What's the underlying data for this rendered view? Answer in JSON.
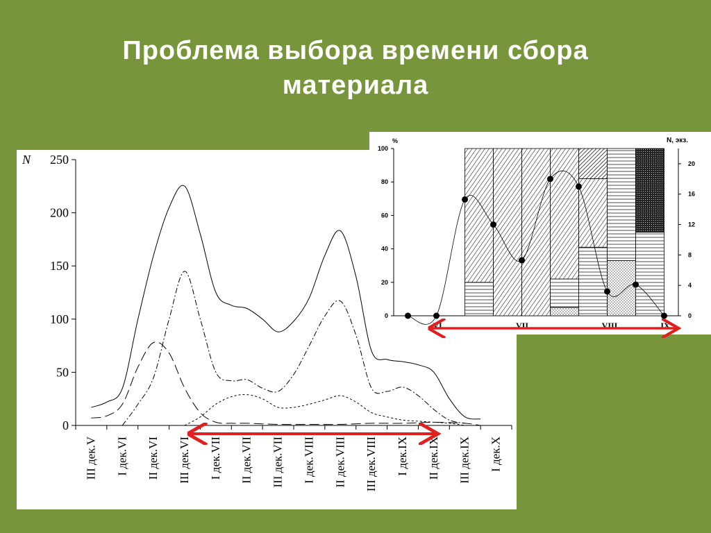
{
  "slide": {
    "title_line1": "Проблема выбора времени сбора",
    "title_line2": "материала"
  },
  "colors": {
    "background": "#77963b",
    "arrow": "#e0201e",
    "ink": "#000000"
  },
  "chart_data": [
    {
      "type": "line",
      "title": "",
      "ylabel": "N",
      "ylim": [
        0,
        250
      ],
      "yticks": [
        0,
        50,
        100,
        150,
        200,
        250
      ],
      "categories": [
        "III дек.V",
        "I дек.VI",
        "II дек.VI",
        "III дек.VI",
        "I дек.VII",
        "II дек.VII",
        "III дек.VII",
        "I дек.VIII",
        "II дек.VIII",
        "III дек.VIII",
        "I дек.IX",
        "II дек.IX",
        "III дек.IX",
        "I дек.X"
      ],
      "series": [
        {
          "style": "solid",
          "x": [
            0,
            0.5,
            1,
            1.5,
            2,
            2.5,
            3,
            3.5,
            4,
            4.5,
            5,
            5.5,
            6,
            6.5,
            7,
            7.5,
            8,
            8.5,
            9,
            9.5,
            10,
            10.5,
            11,
            11.5,
            12,
            12.5
          ],
          "values": [
            17,
            22,
            35,
            100,
            160,
            205,
            225,
            180,
            125,
            113,
            110,
            100,
            88,
            98,
            120,
            160,
            183,
            140,
            70,
            62,
            60,
            57,
            50,
            25,
            8,
            6
          ]
        },
        {
          "style": "dash-dot",
          "x": [
            1,
            1.5,
            2,
            2.5,
            3,
            3.5,
            4,
            4.5,
            5,
            5.5,
            6,
            6.5,
            7,
            7.5,
            8,
            8.5,
            9,
            9.5,
            10,
            10.5,
            11,
            11.5,
            12
          ],
          "values": [
            0,
            20,
            45,
            100,
            145,
            100,
            50,
            42,
            43,
            35,
            32,
            48,
            75,
            103,
            117,
            85,
            35,
            32,
            36,
            28,
            15,
            5,
            2
          ]
        },
        {
          "style": "long-dash",
          "x": [
            0,
            0.5,
            1,
            1.5,
            2,
            2.5,
            3,
            3.5,
            4,
            4.5,
            5,
            6,
            7,
            8,
            9,
            10,
            11,
            12,
            12.5
          ],
          "values": [
            7,
            9,
            20,
            55,
            78,
            68,
            35,
            12,
            3,
            2,
            2,
            1,
            1,
            1,
            2,
            2,
            3,
            2,
            0
          ]
        },
        {
          "style": "short-dash",
          "x": [
            3,
            3.5,
            4,
            4.5,
            5,
            5.5,
            6,
            6.5,
            7,
            7.5,
            8,
            8.5,
            9,
            9.5,
            10,
            10.5,
            11,
            11.5,
            12
          ],
          "values": [
            0,
            8,
            20,
            27,
            29,
            25,
            17,
            17,
            20,
            24,
            28,
            22,
            12,
            8,
            5,
            4,
            3,
            2,
            0
          ]
        }
      ],
      "highlight_range": [
        "III дек.VI",
        "II дек.IX"
      ]
    },
    {
      "type": "bar",
      "ylabel_left": "%",
      "ylabel_right": "N, экз.",
      "ylim_left": [
        0,
        100
      ],
      "ylim_right": [
        0,
        22
      ],
      "yticks_left": [
        0,
        20,
        40,
        60,
        80,
        100
      ],
      "yticks_right": [
        0,
        4,
        8,
        12,
        16,
        20
      ],
      "month_labels": [
        "VI",
        "VII",
        "VIII",
        "IX"
      ],
      "stacked_bars": [
        {
          "segments": [
            {
              "pattern": "hlines",
              "value": 20
            },
            {
              "pattern": "diag",
              "value": 80
            }
          ]
        },
        {
          "segments": [
            {
              "pattern": "diag",
              "value": 100
            }
          ]
        },
        {
          "segments": [
            {
              "pattern": "diag",
              "value": 100
            }
          ]
        },
        {
          "segments": [
            {
              "pattern": "dots",
              "value": 5
            },
            {
              "pattern": "hlines",
              "value": 17
            },
            {
              "pattern": "diag",
              "value": 78
            }
          ]
        },
        {
          "segments": [
            {
              "pattern": "hlines",
              "value": 41
            },
            {
              "pattern": "diag",
              "value": 41
            },
            {
              "pattern": "crosshatch",
              "value": 18
            }
          ]
        },
        {
          "segments": [
            {
              "pattern": "dots",
              "value": 33
            },
            {
              "pattern": "hlines",
              "value": 67
            }
          ]
        },
        {
          "segments": [
            {
              "pattern": "hlines",
              "value": 50
            },
            {
              "pattern": "dense",
              "value": 50
            }
          ]
        }
      ],
      "points": [
        0,
        0,
        15.3,
        12,
        7.3,
        18,
        17,
        3.2,
        4.1,
        0
      ],
      "highlight_range": [
        "VI",
        "IX"
      ]
    }
  ]
}
